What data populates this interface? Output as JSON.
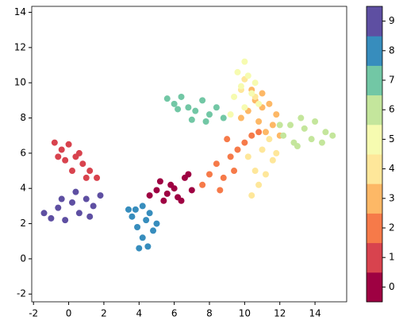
{
  "chart_data": {
    "type": "scatter",
    "xlim": [
      -2.1,
      15.8
    ],
    "ylim": [
      -2.44,
      14.34
    ],
    "xticks": [
      -2,
      0,
      2,
      4,
      6,
      8,
      10,
      12,
      14
    ],
    "yticks": [
      -2,
      0,
      2,
      4,
      6,
      8,
      10,
      12,
      14
    ],
    "series": [
      {
        "name": "0",
        "color": "#9e0142",
        "x": [
          4.6,
          5.0,
          5.4,
          5.8,
          6.2,
          6.6,
          7.0,
          5.2,
          6.0,
          6.8,
          5.6,
          6.4
        ],
        "y": [
          3.6,
          3.9,
          3.3,
          4.2,
          3.5,
          4.6,
          3.9,
          4.4,
          4.0,
          4.8,
          3.7,
          3.3
        ]
      },
      {
        "name": "1",
        "color": "#d8434e",
        "x": [
          -0.8,
          -0.4,
          0,
          0.4,
          0.8,
          1.2,
          1.6,
          -0.2,
          0.6,
          1.0,
          -0.6,
          0.2
        ],
        "y": [
          6.6,
          6.2,
          6.5,
          5.8,
          5.4,
          5.0,
          4.6,
          5.6,
          6.0,
          4.6,
          5.8,
          5.0
        ]
      },
      {
        "name": "2",
        "color": "#f67a49",
        "x": [
          7.6,
          8.0,
          8.4,
          8.8,
          9.2,
          9.6,
          10.0,
          10.4,
          8.6,
          9.4,
          10.8,
          9.0
        ],
        "y": [
          4.2,
          4.8,
          5.4,
          4.6,
          5.8,
          6.2,
          6.6,
          7.0,
          3.9,
          5.0,
          7.2,
          6.8
        ]
      },
      {
        "name": "3",
        "color": "#fdb866",
        "x": [
          10.2,
          10.6,
          11.0,
          11.4,
          11.8,
          10.8,
          11.2,
          11.6,
          10.4,
          12.0,
          11.0,
          9.8
        ],
        "y": [
          8.4,
          9.0,
          9.4,
          8.8,
          8.2,
          7.8,
          7.2,
          7.6,
          9.6,
          7.0,
          8.6,
          8.0
        ]
      },
      {
        "name": "4",
        "color": "#fee79a",
        "x": [
          10.4,
          10.8,
          11.2,
          11.6,
          11.0,
          10.6,
          11.4,
          10.2,
          11.8,
          9.8,
          10.0,
          10.6
        ],
        "y": [
          3.6,
          4.2,
          4.8,
          5.6,
          6.2,
          5.0,
          6.8,
          5.8,
          6.0,
          9.6,
          10.2,
          9.2
        ]
      },
      {
        "name": "5",
        "color": "#f6fbb0",
        "x": [
          9.4,
          9.8,
          10.2,
          10.6,
          10.0,
          9.6,
          10.4,
          10.8,
          10.0,
          9.2
        ],
        "y": [
          9.2,
          9.8,
          10.4,
          10.0,
          11.2,
          10.6,
          9.4,
          8.8,
          8.6,
          8.2
        ]
      },
      {
        "name": "6",
        "color": "#c4e69c",
        "x": [
          12.2,
          12.8,
          13.4,
          14.0,
          14.6,
          15.0,
          13.0,
          13.8,
          12.6,
          14.4,
          13.2,
          12.0
        ],
        "y": [
          7.0,
          6.6,
          7.4,
          7.8,
          7.2,
          7.0,
          6.4,
          6.8,
          7.6,
          6.6,
          8.0,
          7.6
        ]
      },
      {
        "name": "7",
        "color": "#72c7a5",
        "x": [
          5.6,
          6.0,
          6.4,
          6.8,
          7.2,
          7.6,
          8.0,
          8.4,
          6.2,
          7.0,
          7.8,
          8.8
        ],
        "y": [
          9.1,
          8.8,
          9.2,
          8.6,
          8.4,
          9.0,
          8.2,
          8.6,
          8.5,
          7.9,
          7.8,
          8.0
        ]
      },
      {
        "name": "8",
        "color": "#378dbd",
        "x": [
          3.6,
          3.9,
          4.2,
          4.5,
          4.8,
          3.8,
          4.4,
          4.0,
          4.6,
          4.2,
          3.4,
          5.0
        ],
        "y": [
          2.4,
          1.8,
          1.2,
          0.7,
          1.6,
          2.8,
          2.2,
          0.6,
          2.6,
          3.0,
          2.8,
          2.0
        ]
      },
      {
        "name": "9",
        "color": "#5e4fa2",
        "x": [
          -1.4,
          -1.0,
          -0.6,
          -0.2,
          0.2,
          0.6,
          1.0,
          1.4,
          1.8,
          -0.4,
          0.4,
          1.2
        ],
        "y": [
          2.6,
          2.3,
          2.9,
          2.2,
          3.2,
          2.6,
          3.4,
          3.0,
          3.6,
          3.4,
          3.8,
          2.4
        ]
      }
    ]
  }
}
